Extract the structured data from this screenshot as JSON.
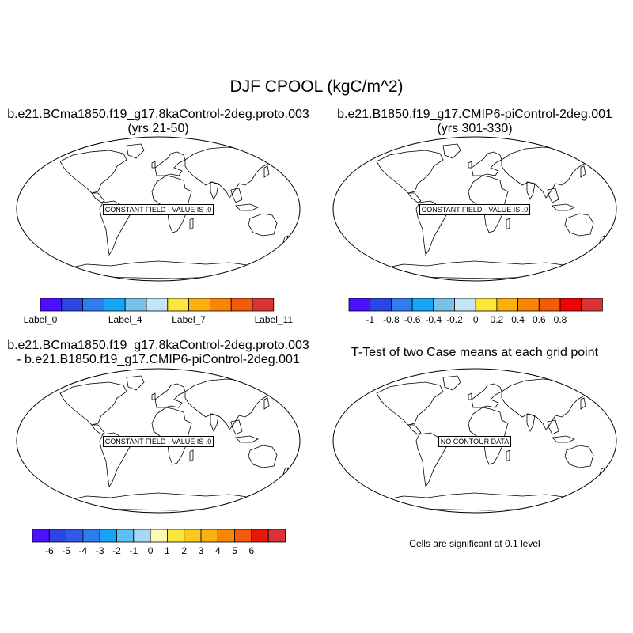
{
  "main_title": "DJF CPOOL (kgC/m^2)",
  "panels": [
    {
      "title_line1": "b.e21.BCma1850.f19_g17.8kaControl-2deg.proto.003",
      "title_line2": "(yrs 21-50)",
      "map_label": "CONSTANT FIELD - VALUE IS .0",
      "colorbar": {
        "colors": [
          "#4b10ff",
          "#2c46e6",
          "#2f7cf0",
          "#14a5f5",
          "#78c2ea",
          "#c4e5f6",
          "#fde63c",
          "#fbb010",
          "#fa8405",
          "#f35b08",
          "#db3333"
        ],
        "labels": [
          {
            "text": "Label_0",
            "at": 0
          },
          {
            "text": "Label_4",
            "at": 4
          },
          {
            "text": "Label_7",
            "at": 7
          },
          {
            "text": "Label_11",
            "at": 11
          }
        ]
      }
    },
    {
      "title_line1": "b.e21.B1850.f19_g17.CMIP6-piControl-2deg.001",
      "title_line2": "(yrs 301-330)",
      "map_label": "CONSTANT FIELD - VALUE IS .0",
      "colorbar": {
        "colors": [
          "#4b10ff",
          "#2c46e6",
          "#2f7cf0",
          "#14a5f5",
          "#78c2ea",
          "#c4e5f6",
          "#fde63c",
          "#fbb010",
          "#fa8405",
          "#f35b08",
          "#ee0404",
          "#db3333"
        ],
        "labels": [
          {
            "text": "-1",
            "at": 1
          },
          {
            "text": "-0.8",
            "at": 2
          },
          {
            "text": "-0.6",
            "at": 3
          },
          {
            "text": "-0.4",
            "at": 4
          },
          {
            "text": "-0.2",
            "at": 5
          },
          {
            "text": "0",
            "at": 6
          },
          {
            "text": "0.2",
            "at": 7
          },
          {
            "text": "0.4",
            "at": 8
          },
          {
            "text": "0.6",
            "at": 9
          },
          {
            "text": "0.8",
            "at": 10
          }
        ]
      }
    },
    {
      "title_line1": "b.e21.BCma1850.f19_g17.8kaControl-2deg.proto.003",
      "title_line2": "- b.e21.B1850.f19_g17.CMIP6-piControl-2deg.001",
      "map_label": "CONSTANT FIELD - VALUE IS .0",
      "colorbar": {
        "colors": [
          "#4b10ff",
          "#2c46e6",
          "#3158e8",
          "#2f7cf0",
          "#14a5f5",
          "#5cc0f0",
          "#a5d8f3",
          "#fdf9b5",
          "#fde63c",
          "#fbc81e",
          "#fbb010",
          "#fa8405",
          "#f35b08",
          "#e81808",
          "#db3333"
        ],
        "labels": [
          {
            "text": "-6",
            "at": 1
          },
          {
            "text": "-5",
            "at": 2
          },
          {
            "text": "-4",
            "at": 3
          },
          {
            "text": "-3",
            "at": 4
          },
          {
            "text": "-2",
            "at": 5
          },
          {
            "text": "-1",
            "at": 6
          },
          {
            "text": "0",
            "at": 7
          },
          {
            "text": "1",
            "at": 8
          },
          {
            "text": "2",
            "at": 9
          },
          {
            "text": "3",
            "at": 10
          },
          {
            "text": "4",
            "at": 11
          },
          {
            "text": "5",
            "at": 12
          },
          {
            "text": "6",
            "at": 13
          }
        ]
      }
    },
    {
      "title_line1": "T-Test of two Case means at each grid point",
      "title_line2": "",
      "map_label": "NO CONTOUR DATA",
      "note": "Cells are significant at 0.1 level"
    }
  ]
}
